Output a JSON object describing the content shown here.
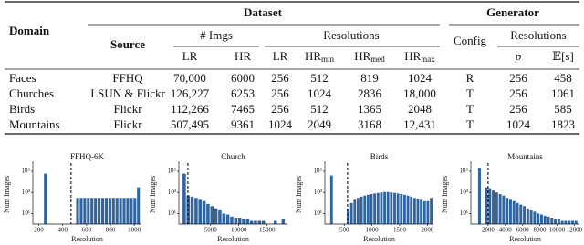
{
  "table": {
    "header": {
      "domain": "Domain",
      "dataset": "Dataset",
      "generator": "Generator",
      "source": "Source",
      "imgs": "# Imgs",
      "resolutions": "Resolutions",
      "config": "Config",
      "gen_resolutions": "Resolutions"
    },
    "columns": [
      {
        "main": "LR"
      },
      {
        "main": "HR"
      },
      {
        "main": "LR"
      },
      {
        "main": "HR",
        "sub": "min"
      },
      {
        "main": "HR",
        "sub": "med"
      },
      {
        "main": "HR",
        "sub": "max"
      },
      {
        "main": "p"
      },
      {
        "main": "𝔼[s]"
      }
    ],
    "rows": [
      [
        "Faces",
        "FFHQ",
        "70,000",
        "6000",
        "256",
        "512",
        "819",
        "1024",
        "R",
        "256",
        "458"
      ],
      [
        "Churches",
        "LSUN & Flickr",
        "126,227",
        "6253",
        "256",
        "1024",
        "2836",
        "18,000",
        "T",
        "256",
        "1061"
      ],
      [
        "Birds",
        "Flickr",
        "112,266",
        "7465",
        "256",
        "512",
        "1365",
        "2048",
        "T",
        "256",
        "585"
      ],
      [
        "Mountains",
        "Flickr",
        "507,495",
        "9361",
        "1024",
        "2049",
        "3168",
        "12,431",
        "T",
        "1024",
        "1823"
      ]
    ]
  },
  "chart_data": [
    {
      "type": "histogram",
      "title": "FFHQ-6K",
      "xlabel": "Resolution",
      "ylabel": "Num Images",
      "color": "#2f64a0",
      "log_y": true,
      "threshold": 470,
      "bins": [
        240,
        270,
        300,
        330,
        360,
        390,
        420,
        450,
        480,
        510,
        540,
        570,
        600,
        630,
        660,
        690,
        720,
        750,
        780,
        810,
        840,
        870,
        900,
        930,
        960,
        990,
        1020,
        1050
      ],
      "values": [
        60000,
        0,
        0,
        0,
        0,
        0,
        0,
        0,
        0,
        300,
        300,
        300,
        300,
        300,
        300,
        300,
        300,
        300,
        300,
        300,
        300,
        300,
        300,
        300,
        300,
        300,
        3000
      ],
      "xlim": [
        150,
        1060
      ],
      "xticks": [
        200,
        400,
        600,
        800,
        1000
      ],
      "ylim": [
        1,
        400000
      ],
      "yticks": [
        {
          "value": 10,
          "label": "10¹"
        },
        {
          "value": 1000,
          "label": "10³"
        },
        {
          "value": 100000,
          "label": "10⁵"
        }
      ]
    },
    {
      "type": "histogram",
      "title": "Church",
      "xlabel": "Resolution",
      "ylabel": "Num Images",
      "color": "#2f64a0",
      "log_y": true,
      "threshold": 1000,
      "bins": [
        0,
        700,
        1400,
        2100,
        2800,
        3500,
        4200,
        4900,
        5600,
        6300,
        7000,
        7700,
        8400,
        9100,
        9800,
        10500,
        11200,
        11900,
        12600,
        13300,
        14000,
        14700,
        15400,
        16100,
        16800,
        17500,
        18200
      ],
      "values": [
        60000,
        500,
        400,
        300,
        200,
        150,
        80,
        50,
        30,
        20,
        10,
        8,
        5,
        4,
        4,
        3,
        3,
        2,
        2,
        2,
        2,
        0,
        0,
        2,
        0,
        3
      ],
      "xlim": [
        -600,
        18600
      ],
      "xticks": [
        5000,
        10000,
        15000
      ],
      "ylim": [
        1,
        400000
      ],
      "yticks": [
        {
          "value": 10,
          "label": "10¹"
        },
        {
          "value": 1000,
          "label": "10³"
        },
        {
          "value": 100000,
          "label": "10⁵"
        }
      ]
    },
    {
      "type": "histogram",
      "title": "Birds",
      "xlabel": "Resolution",
      "ylabel": "Num Images",
      "color": "#2f64a0",
      "log_y": true,
      "threshold": 560,
      "bins": [
        240,
        300,
        360,
        420,
        480,
        540,
        600,
        660,
        720,
        780,
        840,
        900,
        960,
        1020,
        1080,
        1140,
        1200,
        1260,
        1320,
        1380,
        1440,
        1500,
        1560,
        1620,
        1680,
        1740,
        1800,
        1860,
        1920,
        1980,
        2040,
        2100
      ],
      "values": [
        40000,
        0,
        0,
        0,
        0,
        30,
        100,
        200,
        300,
        400,
        500,
        600,
        700,
        800,
        900,
        1000,
        1100,
        1100,
        1000,
        900,
        800,
        700,
        600,
        500,
        400,
        300,
        250,
        200,
        150,
        150,
        300
      ],
      "xlim": [
        150,
        2110
      ],
      "xticks": [
        500,
        1000,
        1500,
        2000
      ],
      "ylim": [
        1,
        400000
      ],
      "yticks": [
        {
          "value": 10,
          "label": "10¹"
        },
        {
          "value": 1000,
          "label": "10³"
        },
        {
          "value": 100000,
          "label": "10⁵"
        }
      ]
    },
    {
      "type": "histogram",
      "title": "Mountains",
      "xlabel": "Resolution",
      "ylabel": "Num Images",
      "color": "#2f64a0",
      "log_y": true,
      "threshold": 2000,
      "bins": [
        800,
        1200,
        1600,
        2000,
        2400,
        2800,
        3200,
        3600,
        4000,
        4400,
        4800,
        5200,
        5600,
        6000,
        6400,
        6800,
        7200,
        7600,
        8000,
        8400,
        8800,
        9200,
        9600,
        10000,
        10400,
        10800,
        11200,
        11600,
        12000,
        12400
      ],
      "values": [
        200000,
        0,
        3000,
        2500,
        1500,
        1000,
        700,
        500,
        300,
        200,
        150,
        100,
        70,
        50,
        30,
        20,
        15,
        10,
        8,
        6,
        5,
        4,
        3,
        3,
        2,
        2,
        2,
        2,
        2
      ],
      "xlim": [
        0,
        12600
      ],
      "xticks": [
        2000,
        4000,
        6000,
        8000,
        10000,
        12000
      ],
      "ylim": [
        1,
        400000
      ],
      "yticks": [
        {
          "value": 10,
          "label": "10¹"
        },
        {
          "value": 1000,
          "label": "10³"
        },
        {
          "value": 100000,
          "label": "10⁵"
        }
      ]
    }
  ]
}
